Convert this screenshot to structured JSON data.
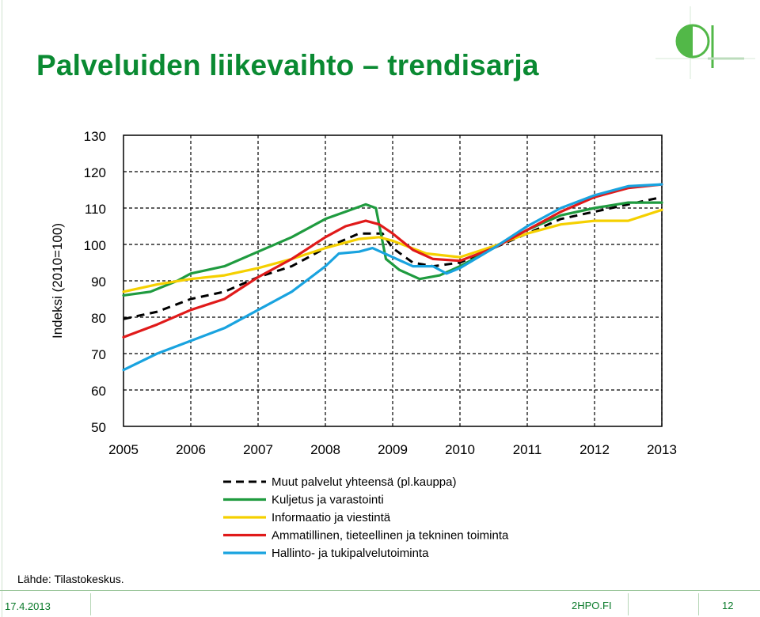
{
  "slide": {
    "title": "Palveluiden liikevaihto – trendisarja",
    "source": "Lähde: Tilastokeskus.",
    "footer": {
      "date": "17.4.2013",
      "site": "2HPO.FI",
      "page": "12"
    }
  },
  "colors": {
    "title": "#0a8a32",
    "footer": "#0a7a2a",
    "logo_green": "#52b848"
  },
  "logo": {
    "icon": "half-filled-circle-logo"
  },
  "chart_data": {
    "type": "line",
    "title": "",
    "xlabel": "",
    "ylabel": "Indeksi (2010=100)",
    "xlim": [
      2005,
      2013
    ],
    "ylim": [
      50,
      130
    ],
    "yticks": [
      "50",
      "60",
      "70",
      "80",
      "90",
      "100",
      "110",
      "120",
      "130"
    ],
    "xticks": [
      "2005",
      "2006",
      "2007",
      "2008",
      "2009",
      "2010",
      "2011",
      "2012",
      "2013"
    ],
    "grid": true,
    "legend_position": "bottom",
    "series": [
      {
        "name": "Muut palvelut yhteensä (pl.kauppa)",
        "color": "#000000",
        "dash": true,
        "points": [
          [
            2005,
            79.5
          ],
          [
            2005.5,
            81.5
          ],
          [
            2006,
            85
          ],
          [
            2006.5,
            87
          ],
          [
            2007,
            91
          ],
          [
            2007.5,
            94
          ],
          [
            2008,
            99
          ],
          [
            2008.5,
            103
          ],
          [
            2008.85,
            103
          ],
          [
            2009,
            99
          ],
          [
            2009.3,
            95
          ],
          [
            2009.6,
            94
          ],
          [
            2010,
            95
          ],
          [
            2010.5,
            99
          ],
          [
            2011,
            103
          ],
          [
            2011.5,
            107
          ],
          [
            2012,
            109
          ],
          [
            2012.5,
            111
          ],
          [
            2013,
            113
          ]
        ]
      },
      {
        "name": "Kuljetus ja varastointi",
        "color": "#1f9b3f",
        "dash": false,
        "points": [
          [
            2005,
            86
          ],
          [
            2005.4,
            87
          ],
          [
            2005.8,
            90
          ],
          [
            2006,
            92
          ],
          [
            2006.5,
            94
          ],
          [
            2007,
            98
          ],
          [
            2007.5,
            102
          ],
          [
            2008,
            107
          ],
          [
            2008.3,
            109
          ],
          [
            2008.6,
            111
          ],
          [
            2008.75,
            110
          ],
          [
            2008.9,
            96
          ],
          [
            2009.1,
            93
          ],
          [
            2009.4,
            90.5
          ],
          [
            2009.7,
            91.5
          ],
          [
            2010,
            94
          ],
          [
            2010.5,
            99
          ],
          [
            2011,
            104
          ],
          [
            2011.5,
            108
          ],
          [
            2012,
            110
          ],
          [
            2012.5,
            111.5
          ],
          [
            2013,
            111.5
          ]
        ]
      },
      {
        "name": "Informaatio ja viestintä",
        "color": "#f5d000",
        "dash": false,
        "points": [
          [
            2005,
            87
          ],
          [
            2005.5,
            89
          ],
          [
            2006,
            90.5
          ],
          [
            2006.5,
            91.5
          ],
          [
            2007,
            93.5
          ],
          [
            2007.5,
            96
          ],
          [
            2008,
            99
          ],
          [
            2008.5,
            101.5
          ],
          [
            2008.8,
            102
          ],
          [
            2009,
            101
          ],
          [
            2009.5,
            97.5
          ],
          [
            2010,
            96.5
          ],
          [
            2010.5,
            99.5
          ],
          [
            2011,
            103
          ],
          [
            2011.5,
            105.5
          ],
          [
            2012,
            106.5
          ],
          [
            2012.5,
            106.5
          ],
          [
            2013,
            109.5
          ]
        ]
      },
      {
        "name": "Ammatillinen, tieteellinen ja tekninen toiminta",
        "color": "#e01a1a",
        "dash": false,
        "points": [
          [
            2005,
            74.5
          ],
          [
            2005.5,
            78
          ],
          [
            2006,
            82
          ],
          [
            2006.5,
            85
          ],
          [
            2007,
            91
          ],
          [
            2007.5,
            96
          ],
          [
            2008,
            102
          ],
          [
            2008.3,
            105
          ],
          [
            2008.6,
            106.5
          ],
          [
            2008.8,
            105.5
          ],
          [
            2009,
            103
          ],
          [
            2009.3,
            98.5
          ],
          [
            2009.6,
            96
          ],
          [
            2010,
            95.5
          ],
          [
            2010.5,
            99
          ],
          [
            2011,
            104
          ],
          [
            2011.5,
            109
          ],
          [
            2012,
            113
          ],
          [
            2012.5,
            115.5
          ],
          [
            2013,
            116.5
          ]
        ]
      },
      {
        "name": "Hallinto- ja tukipalvelutoiminta",
        "color": "#19a3df",
        "dash": false,
        "points": [
          [
            2005,
            65.5
          ],
          [
            2005.5,
            70
          ],
          [
            2006,
            73.5
          ],
          [
            2006.5,
            77
          ],
          [
            2007,
            82
          ],
          [
            2007.5,
            87
          ],
          [
            2008,
            94
          ],
          [
            2008.2,
            97.5
          ],
          [
            2008.5,
            98
          ],
          [
            2008.7,
            99
          ],
          [
            2009,
            96.5
          ],
          [
            2009.3,
            94
          ],
          [
            2009.6,
            94
          ],
          [
            2009.8,
            92
          ],
          [
            2010,
            93.5
          ],
          [
            2010.5,
            99
          ],
          [
            2011,
            105
          ],
          [
            2011.5,
            110
          ],
          [
            2012,
            113.5
          ],
          [
            2012.5,
            116
          ],
          [
            2013,
            116.5
          ]
        ]
      }
    ]
  }
}
